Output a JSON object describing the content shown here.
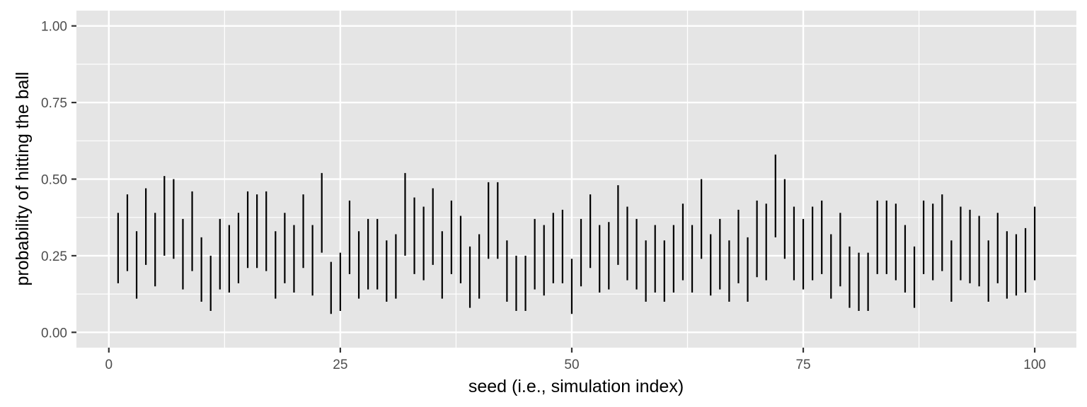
{
  "chart_data": {
    "type": "errorbar",
    "title": "",
    "xlabel": "seed (i.e., simulation index)",
    "ylabel": "probability of hitting the ball",
    "xlim": [
      -3.5,
      104.5
    ],
    "ylim": [
      -0.05,
      1.05
    ],
    "x_ticks": [
      0,
      25,
      50,
      75,
      100
    ],
    "x_tick_labels": [
      "0",
      "25",
      "50",
      "75",
      "100"
    ],
    "y_ticks": [
      0,
      0.25,
      0.5,
      0.75,
      1
    ],
    "y_tick_labels": [
      "0.00",
      "0.25",
      "0.50",
      "0.75",
      "1.00"
    ],
    "grid": true,
    "legend": "none",
    "colors": {
      "panel": "#e5e5e5",
      "grid": "#ffffff",
      "bar": "#000000",
      "text": "#4d4d4d",
      "title": "#000000"
    },
    "x": [
      1,
      2,
      3,
      4,
      5,
      6,
      7,
      8,
      9,
      10,
      11,
      12,
      13,
      14,
      15,
      16,
      17,
      18,
      19,
      20,
      21,
      22,
      23,
      24,
      25,
      26,
      27,
      28,
      29,
      30,
      31,
      32,
      33,
      34,
      35,
      36,
      37,
      38,
      39,
      40,
      41,
      42,
      43,
      44,
      45,
      46,
      47,
      48,
      49,
      50,
      51,
      52,
      53,
      54,
      55,
      56,
      57,
      58,
      59,
      60,
      61,
      62,
      63,
      64,
      65,
      66,
      67,
      68,
      69,
      70,
      71,
      72,
      73,
      74,
      75,
      76,
      77,
      78,
      79,
      80,
      81,
      82,
      83,
      84,
      85,
      86,
      87,
      88,
      89,
      90,
      91,
      92,
      93,
      94,
      95,
      96,
      97,
      98,
      99,
      100
    ],
    "lower": [
      0.16,
      0.2,
      0.11,
      0.22,
      0.15,
      0.25,
      0.24,
      0.14,
      0.2,
      0.1,
      0.07,
      0.14,
      0.13,
      0.16,
      0.21,
      0.21,
      0.2,
      0.11,
      0.16,
      0.13,
      0.21,
      0.12,
      0.26,
      0.06,
      0.07,
      0.19,
      0.11,
      0.14,
      0.14,
      0.1,
      0.11,
      0.25,
      0.19,
      0.17,
      0.22,
      0.11,
      0.19,
      0.16,
      0.08,
      0.11,
      0.24,
      0.24,
      0.1,
      0.07,
      0.07,
      0.14,
      0.12,
      0.16,
      0.16,
      0.06,
      0.15,
      0.21,
      0.13,
      0.14,
      0.22,
      0.17,
      0.14,
      0.1,
      0.13,
      0.1,
      0.13,
      0.17,
      0.13,
      0.24,
      0.12,
      0.14,
      0.1,
      0.16,
      0.1,
      0.18,
      0.17,
      0.31,
      0.24,
      0.17,
      0.14,
      0.17,
      0.19,
      0.11,
      0.15,
      0.08,
      0.07,
      0.07,
      0.19,
      0.19,
      0.17,
      0.13,
      0.08,
      0.19,
      0.17,
      0.2,
      0.1,
      0.17,
      0.16,
      0.15,
      0.1,
      0.16,
      0.11,
      0.12,
      0.13,
      0.17
    ],
    "upper": [
      0.39,
      0.45,
      0.33,
      0.47,
      0.39,
      0.51,
      0.5,
      0.37,
      0.46,
      0.31,
      0.25,
      0.37,
      0.35,
      0.39,
      0.46,
      0.45,
      0.46,
      0.33,
      0.39,
      0.35,
      0.45,
      0.35,
      0.52,
      0.23,
      0.26,
      0.43,
      0.33,
      0.37,
      0.37,
      0.3,
      0.32,
      0.52,
      0.44,
      0.41,
      0.47,
      0.33,
      0.43,
      0.38,
      0.28,
      0.32,
      0.49,
      0.49,
      0.3,
      0.25,
      0.25,
      0.37,
      0.35,
      0.39,
      0.4,
      0.24,
      0.37,
      0.45,
      0.35,
      0.36,
      0.48,
      0.41,
      0.37,
      0.3,
      0.35,
      0.3,
      0.35,
      0.42,
      0.35,
      0.5,
      0.32,
      0.37,
      0.3,
      0.4,
      0.31,
      0.43,
      0.42,
      0.58,
      0.5,
      0.41,
      0.37,
      0.41,
      0.43,
      0.32,
      0.39,
      0.28,
      0.26,
      0.26,
      0.43,
      0.43,
      0.42,
      0.35,
      0.28,
      0.43,
      0.42,
      0.45,
      0.3,
      0.41,
      0.4,
      0.38,
      0.3,
      0.39,
      0.33,
      0.32,
      0.34,
      0.41
    ]
  }
}
